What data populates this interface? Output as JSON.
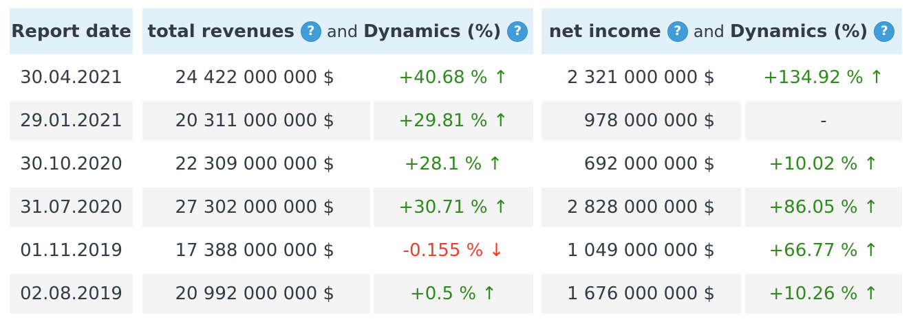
{
  "header": {
    "report_date": "Report date",
    "total_revenues": "total revenues",
    "and_left": "and",
    "revenues_dynamics": "Dynamics (%)",
    "net_income": "net income",
    "and_right": "and",
    "income_dynamics": "Dynamics (%)",
    "help_glyph": "?"
  },
  "rows": [
    {
      "date": "30.04.2021",
      "total_revenue": "24 422 000 000 $",
      "revenue_dynamics": "+40.68 % ↑",
      "revenue_trend": "up",
      "net_income": "2 321 000 000 $",
      "income_dynamics": "+134.92 % ↑",
      "income_trend": "up"
    },
    {
      "date": "29.01.2021",
      "total_revenue": "20 311 000 000 $",
      "revenue_dynamics": "+29.81 % ↑",
      "revenue_trend": "up",
      "net_income": "978 000 000 $",
      "income_dynamics": "-",
      "income_trend": "none"
    },
    {
      "date": "30.10.2020",
      "total_revenue": "22 309 000 000 $",
      "revenue_dynamics": "+28.1 % ↑",
      "revenue_trend": "up",
      "net_income": "692 000 000 $",
      "income_dynamics": "+10.02 % ↑",
      "income_trend": "up"
    },
    {
      "date": "31.07.2020",
      "total_revenue": "27 302 000 000 $",
      "revenue_dynamics": "+30.71 % ↑",
      "revenue_trend": "up",
      "net_income": "2 828 000 000 $",
      "income_dynamics": "+86.05 % ↑",
      "income_trend": "up"
    },
    {
      "date": "01.11.2019",
      "total_revenue": "17 388 000 000 $",
      "revenue_dynamics": "-0.155 % ↓",
      "revenue_trend": "down",
      "net_income": "1 049 000 000 $",
      "income_dynamics": "+66.77 % ↑",
      "income_trend": "up"
    },
    {
      "date": "02.08.2019",
      "total_revenue": "20 992 000 000 $",
      "revenue_dynamics": "+0.5 % ↑",
      "revenue_trend": "up",
      "net_income": "1 676 000 000 $",
      "income_dynamics": "+10.26 % ↑",
      "income_trend": "up"
    }
  ],
  "colors": {
    "positive": "#2f8a1d",
    "negative": "#ee3e2b",
    "text": "#333c46",
    "header_bg": "#e2f1f9",
    "alt_row_bg": "#f4f4f4",
    "help_icon_bg": "#419dd9",
    "help_icon_fg": "#ffffff"
  }
}
